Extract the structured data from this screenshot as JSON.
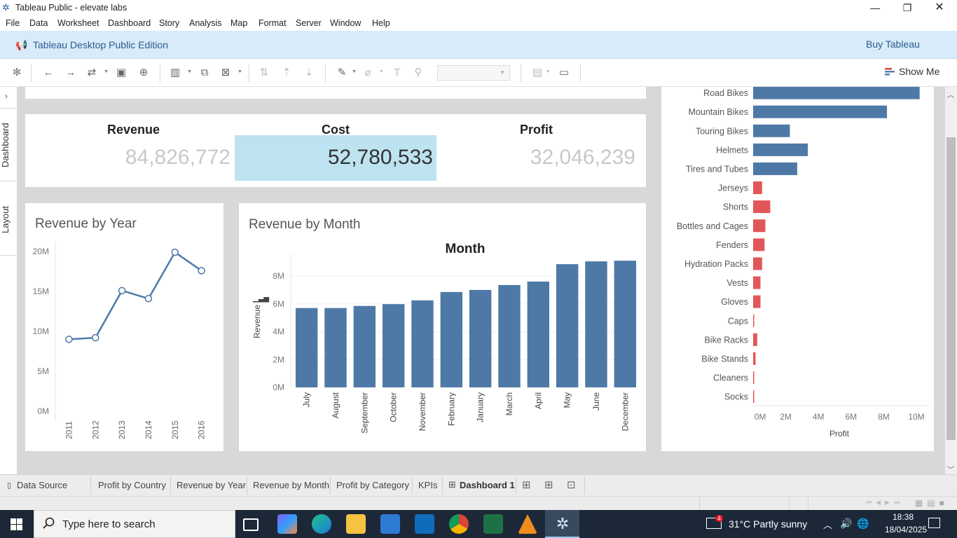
{
  "window": {
    "title": "Tableau Public - elevate labs"
  },
  "menu": [
    "File",
    "Data",
    "Worksheet",
    "Dashboard",
    "Story",
    "Analysis",
    "Map",
    "Format",
    "Server",
    "Window",
    "Help"
  ],
  "banner": {
    "edition": "Tableau Desktop Public Edition",
    "buy_label": "Buy Tableau"
  },
  "toolbar": {
    "show_me_label": "Show Me"
  },
  "side_tabs": {
    "dashboard": "Dashboard",
    "layout": "Layout"
  },
  "kpis": [
    {
      "title": "Revenue",
      "value": "84,826,772"
    },
    {
      "title": "Cost",
      "value": "52,780,533"
    },
    {
      "title": "Profit",
      "value": "32,046,239"
    }
  ],
  "colors": {
    "bar_blue": "#4e79a7",
    "bar_red": "#e15759",
    "highlight": "#bde3f0",
    "kpi_grey": "#c8c8c8"
  },
  "chart_data": [
    {
      "type": "line",
      "title": "Revenue by Year",
      "x": [
        "2011",
        "2012",
        "2013",
        "2014",
        "2015",
        "2016"
      ],
      "values": [
        9000000,
        9200000,
        15100000,
        14100000,
        19900000,
        17600000
      ],
      "yticks": [
        "0M",
        "5M",
        "10M",
        "15M",
        "20M"
      ],
      "ylim": [
        0,
        20000000
      ]
    },
    {
      "type": "bar",
      "title": "Revenue by Month",
      "header": "Month",
      "ylabel": "Revenue",
      "categories": [
        "July",
        "August",
        "September",
        "October",
        "November",
        "February",
        "January",
        "March",
        "April",
        "May",
        "June",
        "December"
      ],
      "values": [
        5700000,
        5700000,
        5850000,
        5980000,
        6250000,
        6850000,
        7000000,
        7350000,
        7600000,
        8850000,
        9050000,
        9100000
      ],
      "yticks": [
        "0M",
        "2M",
        "4M",
        "6M",
        "8M"
      ],
      "ylim": [
        0,
        9500000
      ]
    },
    {
      "type": "bar",
      "orientation": "horizontal",
      "xlabel": "Profit",
      "categories": [
        "Road Bikes",
        "Mountain Bikes",
        "Touring Bikes",
        "Helmets",
        "Tires and Tubes",
        "Jerseys",
        "Shorts",
        "Bottles and Cages",
        "Fenders",
        "Hydration Packs",
        "Vests",
        "Gloves",
        "Caps",
        "Bike Racks",
        "Bike Stands",
        "Cleaners",
        "Socks"
      ],
      "values": [
        10200000,
        8200000,
        2250000,
        3350000,
        2700000,
        550000,
        1050000,
        750000,
        700000,
        550000,
        450000,
        450000,
        30000,
        250000,
        150000,
        60000,
        30000
      ],
      "highlighted": [
        "Road Bikes",
        "Mountain Bikes",
        "Touring Bikes",
        "Helmets",
        "Tires and Tubes"
      ],
      "xticks": [
        "0M",
        "2M",
        "4M",
        "6M",
        "8M",
        "10M"
      ],
      "xlim": [
        0,
        10400000
      ]
    }
  ],
  "sheet_tabs": [
    {
      "label": "Data Source"
    },
    {
      "label": "Profit by Country"
    },
    {
      "label": "Revenue by Year"
    },
    {
      "label": "Revenue by Month"
    },
    {
      "label": "Profit by Category"
    },
    {
      "label": "KPIs"
    },
    {
      "label": "Dashboard 1"
    }
  ],
  "taskbar": {
    "search_placeholder": "Type here to search",
    "weather": "31°C  Partly sunny",
    "time": "18:38",
    "date": "18/04/2025",
    "notification_count": "4"
  }
}
